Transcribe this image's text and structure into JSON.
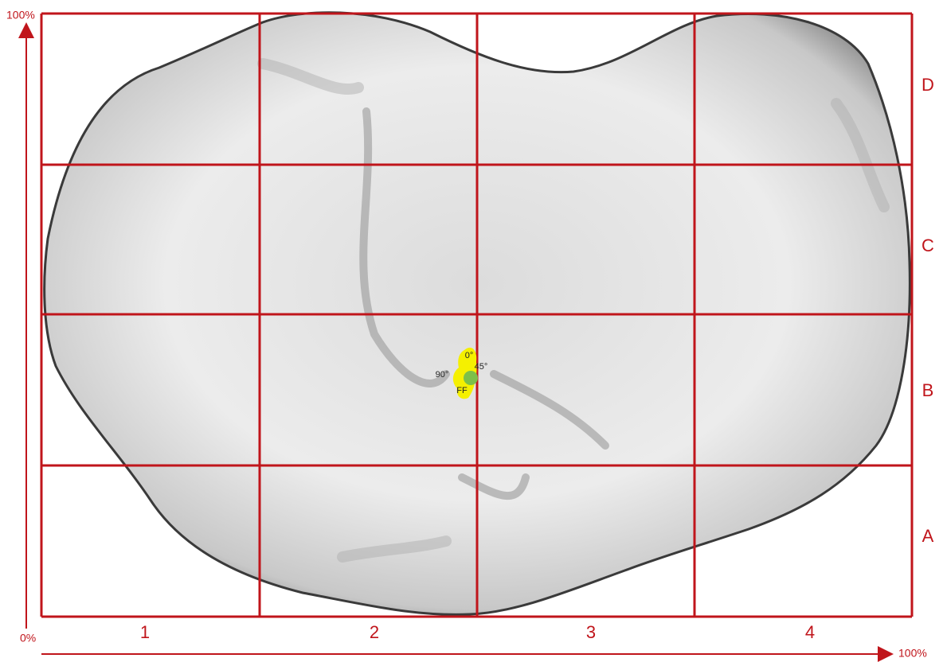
{
  "axes": {
    "y_top": "100%",
    "origin": "0%",
    "x_right": "100%"
  },
  "columns": [
    "1",
    "2",
    "3",
    "4"
  ],
  "rows": [
    "D",
    "C",
    "B",
    "A"
  ],
  "markers": [
    "0°",
    "45°",
    "90°",
    "FF"
  ]
}
